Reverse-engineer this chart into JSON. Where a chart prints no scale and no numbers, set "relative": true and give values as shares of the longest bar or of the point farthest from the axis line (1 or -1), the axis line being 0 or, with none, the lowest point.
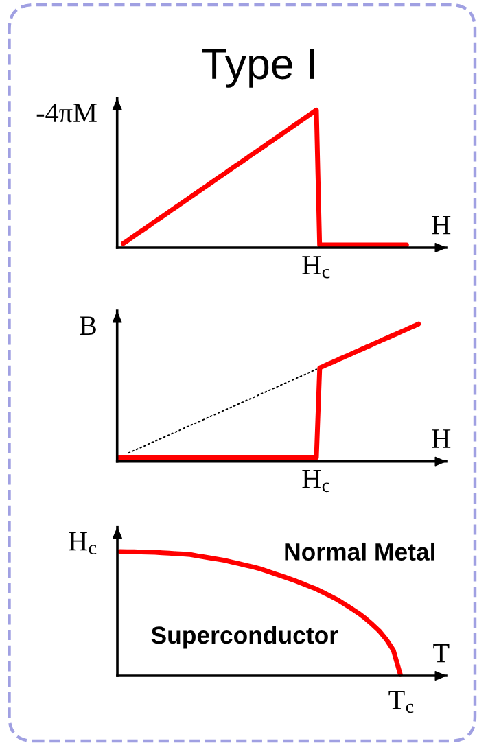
{
  "chart_data": [
    {
      "type": "line",
      "title": "Type I",
      "xlabel": "H",
      "ylabel": "-4πM",
      "relative": true,
      "line_style": "solid",
      "annotations": [
        "H$_{c}$"
      ],
      "categories": [
        null,
        null,
        null,
        null,
        null,
        null,
        null,
        null,
        null,
        null,
        null,
        null,
        null,
        null,
        null,
        null,
        null,
        null,
        null,
        null,
        null,
        null,
        null,
        null,
        null,
        null,
        null,
        null,
        null,
        null,
        null,
        null,
        null,
        null,
        null,
        null,
        null,
        null,
        null,
        null,
        null,
        null,
        null,
        null,
        null,
        null,
        null,
        null,
        null,
        null,
        null,
        null,
        null,
        null,
        null,
        null,
        null,
        null,
        null,
        null,
        null,
        null,
        null,
        null,
        null,
        null,
        null,
        null,
        null,
        null,
        null,
        null,
        null,
        null,
        null,
        null,
        null,
        null,
        null,
        null,
        null,
        null,
        null,
        null,
        null,
        null,
        null,
        null,
        null
      ],
      "series": [
        {
          "color": "#ff0000",
          "values": [
            0.03,
            0.046,
            0.062,
            0.079,
            0.095,
            0.111,
            0.127,
            0.143,
            0.159,
            0.176,
            0.192,
            0.208,
            0.224,
            0.24,
            0.256,
            0.273,
            0.289,
            0.305,
            0.321,
            0.337,
            0.353,
            0.37,
            0.386,
            0.402,
            0.418,
            0.434,
            0.45,
            0.467,
            0.483,
            0.499,
            0.515,
            0.531,
            0.547,
            0.564,
            0.58,
            0.596,
            0.612,
            0.628,
            0.644,
            0.661,
            0.677,
            0.693,
            0.709,
            0.725,
            0.741,
            0.758,
            0.774,
            0.79,
            0.806,
            0.822,
            0.838,
            0.855,
            0.871,
            0.887,
            0.903,
            0.919,
            0.935,
            0.952,
            0.968,
            0.984,
            1.0,
            0.02,
            0.02,
            0.02,
            0.02,
            0.02,
            0.02,
            0.02,
            0.02,
            0.02,
            0.02,
            0.02,
            0.02,
            0.02,
            0.02,
            0.02,
            0.02,
            0.02,
            0.02,
            0.02,
            0.02,
            0.02,
            0.02,
            0.02,
            0.02,
            0.02,
            0.02,
            0.02,
            0.02
          ]
        }
      ]
    },
    {
      "type": "line",
      "xlabel": "H",
      "ylabel": "B",
      "relative": true,
      "line_style": "solid",
      "annotations": [
        "H$_{c}$"
      ],
      "categories": [
        null,
        null,
        null,
        null,
        null,
        null,
        null,
        null,
        null,
        null,
        null,
        null,
        null,
        null,
        null,
        null,
        null,
        null,
        null,
        null,
        null,
        null,
        null,
        null,
        null,
        null,
        null,
        null,
        null,
        null,
        null,
        null,
        null,
        null,
        null,
        null,
        null,
        null,
        null,
        null,
        null,
        null,
        null,
        null,
        null,
        null,
        null,
        null,
        null,
        null,
        null,
        null,
        null,
        null,
        null,
        null,
        null,
        null,
        null,
        null,
        null,
        null,
        null,
        null,
        null,
        null,
        null,
        null,
        null,
        null,
        null,
        null,
        null,
        null,
        null,
        null,
        null,
        null,
        null,
        null,
        null,
        null,
        null,
        null,
        null,
        null,
        null,
        null,
        null,
        null,
        null,
        null
      ],
      "series": [
        {
          "color": "#000000",
          "line_style": "dotted",
          "values": [
            null,
            null,
            null,
            0.062,
            0.073,
            0.083,
            0.094,
            0.105,
            0.115,
            0.126,
            0.137,
            0.147,
            0.158,
            0.169,
            0.179,
            0.19,
            0.201,
            0.211,
            0.222,
            0.233,
            0.243,
            0.254,
            0.265,
            0.275,
            0.286,
            0.297,
            0.307,
            0.318,
            0.329,
            0.339,
            0.35,
            0.361,
            0.371,
            0.382,
            0.393,
            0.403,
            0.414,
            0.425,
            0.435,
            0.446,
            0.457,
            0.467,
            0.478,
            0.489,
            0.499,
            0.51,
            0.521,
            0.531,
            0.542,
            0.553,
            0.563,
            0.574,
            0.585,
            0.595,
            0.606,
            0.617,
            0.627,
            0.638,
            0.649,
            0.659,
            0.67,
            null,
            null,
            null,
            null,
            null,
            null,
            null,
            null,
            null,
            null,
            null,
            null,
            null,
            null,
            null,
            null,
            null,
            null,
            null,
            null,
            null,
            null,
            null,
            null,
            null,
            null,
            null,
            null,
            null,
            null,
            null
          ]
        },
        {
          "color": "#ff0000",
          "values": [
            0.03,
            0.03,
            0.03,
            0.03,
            0.03,
            0.03,
            0.03,
            0.03,
            0.03,
            0.03,
            0.03,
            0.03,
            0.03,
            0.03,
            0.03,
            0.03,
            0.03,
            0.03,
            0.03,
            0.03,
            0.03,
            0.03,
            0.03,
            0.03,
            0.03,
            0.03,
            0.03,
            0.03,
            0.03,
            0.03,
            0.03,
            0.03,
            0.03,
            0.03,
            0.03,
            0.03,
            0.03,
            0.03,
            0.03,
            0.03,
            0.03,
            0.03,
            0.03,
            0.03,
            0.03,
            0.03,
            0.03,
            0.03,
            0.03,
            0.03,
            0.03,
            0.03,
            0.03,
            0.03,
            0.03,
            0.03,
            0.03,
            0.03,
            0.03,
            0.03,
            0.03,
            0.681,
            0.691,
            0.702,
            0.713,
            0.723,
            0.734,
            0.745,
            0.755,
            0.766,
            0.776,
            0.787,
            0.798,
            0.808,
            0.819,
            0.83,
            0.84,
            0.851,
            0.862,
            0.872,
            0.883,
            0.894,
            0.904,
            0.915,
            0.925,
            0.936,
            0.947,
            0.957,
            0.968,
            0.979,
            0.989,
            1.0
          ]
        }
      ]
    },
    {
      "type": "line",
      "xlabel": "T",
      "ylabel": "H$_{c}$",
      "relative": true,
      "line_style": "solid",
      "annotations": [
        "Normal Metal",
        "Superconductor",
        "T$_{c}$"
      ],
      "categories": [
        null,
        null,
        null,
        null,
        null,
        null,
        null,
        null,
        null,
        null,
        null,
        null,
        null,
        null,
        null,
        null,
        null,
        null,
        null,
        null,
        null,
        null,
        null,
        null,
        null,
        null,
        null,
        null,
        null,
        null,
        null,
        null,
        null,
        null,
        null,
        null,
        null,
        null,
        null,
        null,
        null
      ],
      "series": [
        {
          "color": "#ff0000",
          "values": [
            1.0,
            0.999,
            0.998,
            0.996,
            0.995,
            0.994,
            0.99,
            0.987,
            0.983,
            0.98,
            0.976,
            0.966,
            0.957,
            0.947,
            0.938,
            0.928,
            0.915,
            0.902,
            0.889,
            0.876,
            0.861,
            0.842,
            0.823,
            0.804,
            0.785,
            0.765,
            0.743,
            0.72,
            0.698,
            0.67,
            0.642,
            0.613,
            0.578,
            0.542,
            0.505,
            0.462,
            0.413,
            0.36,
            0.292,
            0.206,
            0.01
          ]
        }
      ]
    }
  ]
}
